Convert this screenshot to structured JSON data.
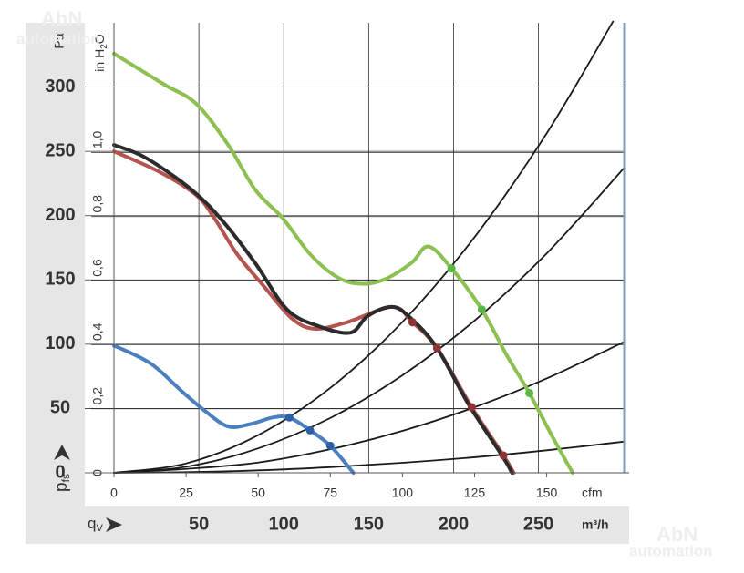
{
  "chart_data": {
    "type": "line",
    "y_label": "Pa",
    "y2_label": "in H",
    "y2_label_sub": "2",
    "y2_label_end": "O",
    "x_label": "cfm",
    "x2_label": "m³/h",
    "p_label": "p",
    "p_label_sub": "fs",
    "q_label": "q",
    "q_label_sub": "V",
    "xlim": [
      0,
      177
    ],
    "xticks": [
      0,
      25,
      50,
      75,
      100,
      125,
      150
    ],
    "x2lim": [
      0,
      300.7
    ],
    "x2ticks": [
      50,
      100,
      150,
      200,
      250
    ],
    "ylim": [
      0,
      350
    ],
    "yticks": [
      0,
      50,
      100,
      150,
      200,
      250,
      300
    ],
    "y2lim": [
      0,
      1.405
    ],
    "y2ticks": [
      0,
      {
        "value": 0.2,
        "label": "0,2"
      },
      {
        "value": 0.4,
        "label": "0,4"
      },
      {
        "value": 0.6,
        "label": "0,6"
      },
      {
        "value": 0.8,
        "label": "0,8"
      },
      {
        "value": 1,
        "label": "1,0"
      }
    ],
    "grid": true,
    "watermark": [
      "AbN",
      "automation"
    ],
    "series": [
      {
        "color": "#1a1a1a",
        "x": [
          0,
          25,
          50,
          75,
          100,
          125,
          150,
          173
        ],
        "values": [
          0,
          7.3,
          29.3,
          66,
          117.3,
          183.3,
          264,
          351
        ]
      },
      {
        "color": "#1a1a1a",
        "x": [
          0,
          25,
          50,
          75,
          100,
          125,
          150,
          177
        ],
        "values": [
          0,
          4.7,
          19,
          42.6,
          75.8,
          118.4,
          170.6,
          237.5
        ]
      },
      {
        "color": "#1a1a1a",
        "x": [
          0,
          25,
          50,
          75,
          100,
          125,
          150,
          177
        ],
        "values": [
          0,
          3,
          8,
          18.3,
          32.6,
          51,
          73.4,
          102
        ]
      },
      {
        "color": "#1a1a1a",
        "x": [
          0,
          25,
          50,
          75,
          100,
          125,
          150,
          177
        ],
        "values": [
          0,
          0.5,
          1.9,
          4.4,
          7.8,
          12.1,
          17.5,
          24.3
        ]
      },
      {
        "color": "#8cc152",
        "x": [
          0,
          17.4,
          28.5,
          39.6,
          49,
          58.5,
          68,
          77.5,
          85.4,
          93.4,
          103,
          109,
          117,
          127.5,
          136,
          144,
          152,
          159
        ],
        "values": [
          326,
          302,
          287,
          255,
          220,
          198,
          170,
          152,
          147,
          150,
          163,
          176,
          159,
          127,
          92,
          62,
          28,
          0
        ]
      },
      {
        "color": "#b5534f",
        "x": [
          0,
          15.8,
          28.5,
          34.8,
          42.7,
          52,
          61.7,
          69.6,
          80.7,
          96.5,
          103.5,
          112,
          124,
          135,
          138.6
        ],
        "values": [
          250,
          234,
          216,
          198,
          170,
          145,
          120,
          112,
          117,
          129,
          117,
          97,
          51,
          13.5,
          0
        ]
      },
      {
        "color": "#2b2b2b",
        "x": [
          0,
          11,
          27,
          38,
          49,
          60,
          71,
          82,
          88,
          96.5,
          103,
          112,
          123,
          134.5,
          138
        ],
        "values": [
          255,
          245,
          220,
          195,
          163,
          127,
          114,
          109,
          122,
          129,
          120,
          97,
          53,
          13.5,
          0
        ]
      },
      {
        "color": "#4a7fc1",
        "x": [
          0,
          12.7,
          23.7,
          31.6,
          39.6,
          47.5,
          55,
          60.8,
          68,
          75,
          83
        ],
        "values": [
          99,
          85,
          63,
          48,
          36,
          38,
          43,
          43,
          33,
          21,
          0
        ]
      },
      {
        "color": "#5cb646",
        "style": "points",
        "x": [
          117,
          127.5,
          144
        ],
        "values": [
          159,
          127,
          62
        ]
      },
      {
        "color": "#8e3434",
        "style": "points",
        "x": [
          103.5,
          112,
          124,
          135
        ],
        "values": [
          117,
          97,
          51,
          13.5
        ]
      },
      {
        "color": "#2d5fa8",
        "style": "points",
        "x": [
          60.8,
          68,
          75
        ],
        "values": [
          43,
          33,
          21
        ]
      }
    ]
  }
}
